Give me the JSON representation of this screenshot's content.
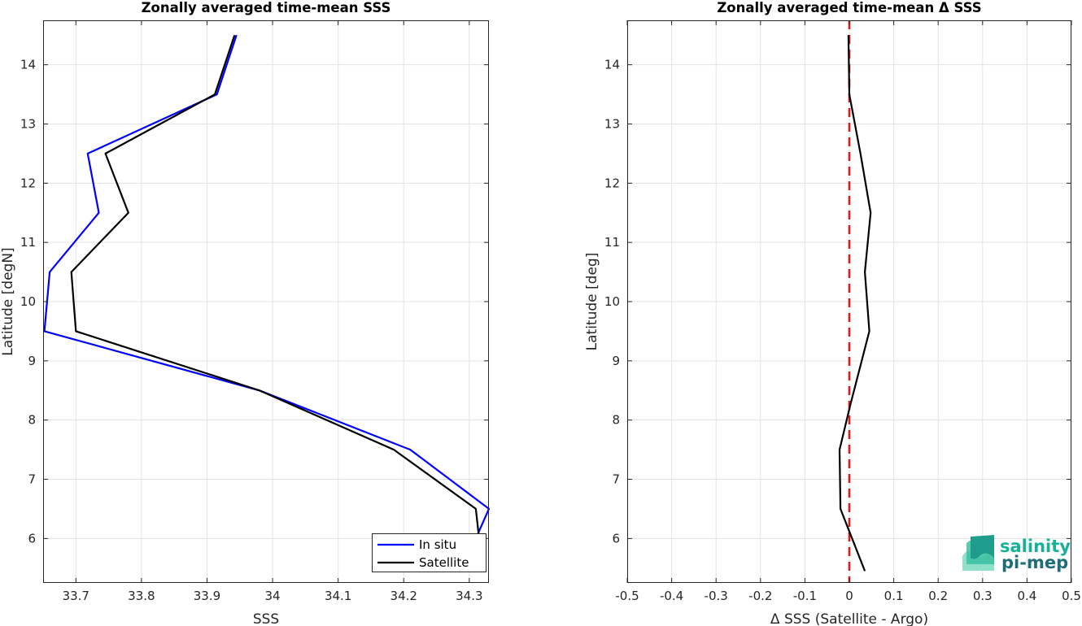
{
  "chart_data": [
    {
      "type": "line",
      "title": "Zonally averaged time-mean SSS",
      "xlabel": "SSS",
      "ylabel": "Latitude [degN]",
      "xlim": [
        33.65,
        34.33
      ],
      "ylim": [
        5.25,
        14.75
      ],
      "xticks": [
        33.7,
        33.8,
        33.9,
        34,
        34.1,
        34.2,
        34.3
      ],
      "xtick_labels": [
        "33.7",
        "33.8",
        "33.9",
        "34",
        "34.1",
        "34.2",
        "34.3"
      ],
      "yticks": [
        6,
        7,
        8,
        9,
        10,
        11,
        12,
        13,
        14
      ],
      "ytick_labels": [
        "6",
        "7",
        "8",
        "9",
        "10",
        "11",
        "12",
        "13",
        "14"
      ],
      "grid": true,
      "legend": "bottom-right",
      "series": [
        {
          "name": "In situ",
          "color": "#0000ff",
          "points": [
            [
              34.31,
              6.0
            ],
            [
              34.33,
              6.5
            ],
            [
              34.21,
              7.5
            ],
            [
              33.98,
              8.5
            ],
            [
              33.652,
              9.5
            ],
            [
              33.66,
              10.5
            ],
            [
              33.735,
              11.5
            ],
            [
              33.718,
              12.5
            ],
            [
              33.915,
              13.5
            ],
            [
              33.945,
              14.5
            ]
          ]
        },
        {
          "name": "Satellite",
          "color": "#000000",
          "points": [
            [
              34.32,
              5.5
            ],
            [
              34.31,
              6.5
            ],
            [
              34.185,
              7.5
            ],
            [
              33.98,
              8.5
            ],
            [
              33.7,
              9.5
            ],
            [
              33.693,
              10.5
            ],
            [
              33.78,
              11.5
            ],
            [
              33.745,
              12.5
            ],
            [
              33.912,
              13.5
            ],
            [
              33.942,
              14.5
            ]
          ]
        }
      ]
    },
    {
      "type": "line",
      "title": "Zonally averaged time-mean Δ SSS",
      "xlabel": "Δ SSS (Satellite - Argo)",
      "ylabel": "Latitude [deg]",
      "xlim": [
        -0.5,
        0.5
      ],
      "ylim": [
        5.25,
        14.75
      ],
      "xticks": [
        -0.5,
        -0.4,
        -0.3,
        -0.2,
        -0.1,
        0,
        0.1,
        0.2,
        0.3,
        0.4,
        0.5
      ],
      "xtick_labels": [
        "-0.5",
        "-0.4",
        "-0.3",
        "-0.2",
        "-0.1",
        "0",
        "0.1",
        "0.2",
        "0.3",
        "0.4",
        "0.5"
      ],
      "yticks": [
        6,
        7,
        8,
        9,
        10,
        11,
        12,
        13,
        14
      ],
      "ytick_labels": [
        "6",
        "7",
        "8",
        "9",
        "10",
        "11",
        "12",
        "13",
        "14"
      ],
      "grid": true,
      "reference_line": {
        "x": 0,
        "color": "#e31a1c",
        "style": "dashed"
      },
      "series": [
        {
          "color": "#000000",
          "points": [
            [
              0.035,
              5.45
            ],
            [
              -0.02,
              6.5
            ],
            [
              -0.022,
              7.5
            ],
            [
              0.002,
              8.25
            ],
            [
              0.045,
              9.5
            ],
            [
              0.035,
              10.5
            ],
            [
              0.048,
              11.5
            ],
            [
              0.025,
              12.5
            ],
            [
              0.0,
              13.5
            ],
            [
              -0.002,
              14.5
            ]
          ]
        }
      ]
    }
  ],
  "logo": {
    "line1": "salinity",
    "line2": "pi-mep",
    "color1": "#17b09a",
    "color2": "#1e6e78"
  }
}
